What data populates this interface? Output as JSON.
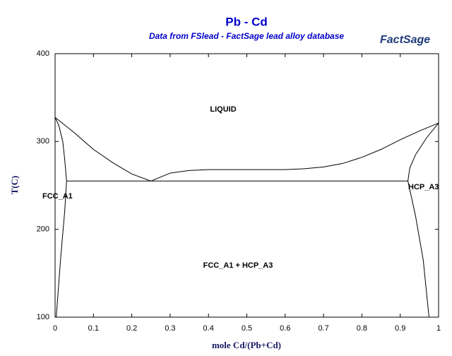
{
  "chart_data": {
    "type": "line",
    "title": "Pb - Cd",
    "subtitle": "Data from FSlead - FactSage lead alloy database",
    "logo": "FactSage",
    "x_label": "mole Cd/(Pb+Cd)",
    "y_label": "T(C)",
    "xlim": [
      0,
      1
    ],
    "ylim": [
      100,
      400
    ],
    "xticks": [
      0,
      0.1,
      0.2,
      0.3,
      0.4,
      0.5,
      0.6,
      0.7,
      0.8,
      0.9,
      1
    ],
    "yticks": [
      100,
      200,
      300,
      400
    ],
    "annotations": [
      "LIQUID",
      "FCC_A1",
      "HCP_A3",
      "FCC_A1 + HCP_A3"
    ],
    "series": [
      {
        "color": "#000000",
        "x": [
          0,
          0.05,
          0.1,
          0.15,
          0.2,
          0.25
        ],
        "values": [
          327.5,
          310,
          291,
          276,
          263,
          255
        ]
      },
      {
        "color": "#000000",
        "x": [
          0.25,
          0.3,
          0.35,
          0.4,
          0.5,
          0.6,
          0.65,
          0.7,
          0.75,
          0.8,
          0.85,
          0.9,
          0.95,
          1
        ],
        "values": [
          255,
          264,
          267,
          268,
          268,
          268,
          269,
          271,
          275,
          282,
          291,
          302,
          312,
          321
        ]
      },
      {
        "color": "#000000",
        "x": [
          0,
          0.01,
          0.02,
          0.025,
          0.03
        ],
        "values": [
          327.5,
          318,
          300,
          280,
          255
        ]
      },
      {
        "color": "#000000",
        "x": [
          0.03,
          0.025,
          0.015,
          0.003
        ],
        "values": [
          255,
          220,
          170,
          100
        ]
      },
      {
        "color": "#000000",
        "x": [
          1,
          0.97,
          0.94,
          0.925,
          0.92
        ],
        "values": [
          321,
          305,
          285,
          270,
          255
        ]
      },
      {
        "color": "#000000",
        "x": [
          0.92,
          0.94,
          0.96,
          0.975
        ],
        "values": [
          255,
          215,
          165,
          100
        ]
      },
      {
        "color": "#000000",
        "x": [
          0.03,
          0.92
        ],
        "values": [
          255,
          255
        ]
      }
    ]
  }
}
